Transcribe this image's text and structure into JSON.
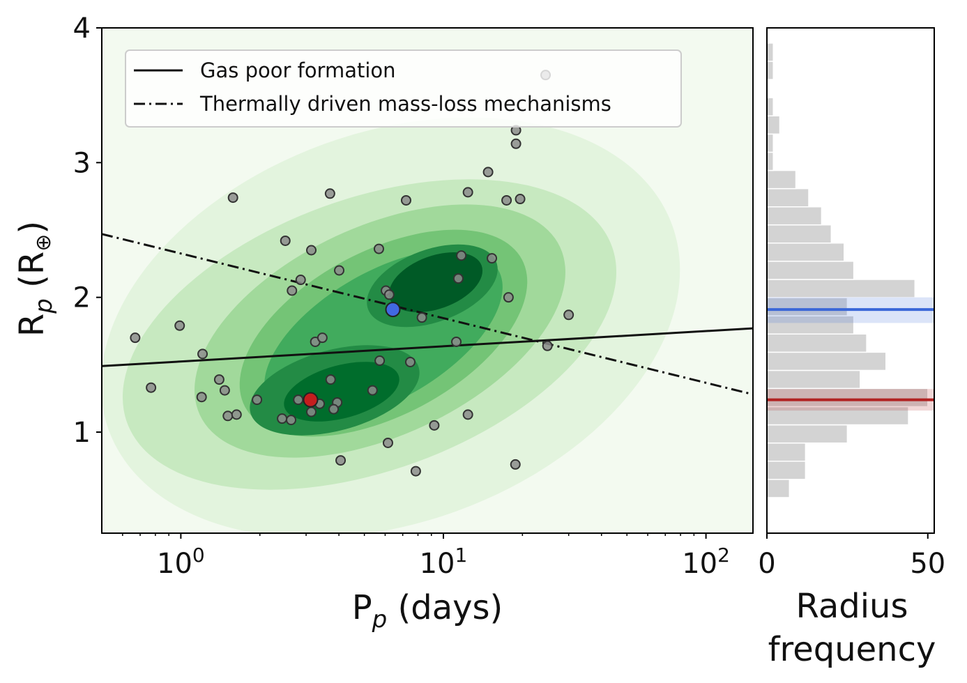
{
  "chart_data": [
    {
      "type": "scatter",
      "xscale": "log",
      "xlabel": [
        "P",
        "p",
        " (days)"
      ],
      "ylabel": [
        "R",
        "p",
        " (R",
        "⊕",
        ")"
      ],
      "xlim": [
        0.5,
        151
      ],
      "ylim": [
        0.25,
        4
      ],
      "xticks": [
        {
          "value": 1,
          "label": "10",
          "exponent": "0"
        },
        {
          "value": 10,
          "label": "10",
          "exponent": "1"
        },
        {
          "value": 100,
          "label": "10",
          "exponent": "2"
        }
      ],
      "xminorticks": [
        0.6,
        0.7,
        0.8,
        0.9,
        2,
        3,
        4,
        5,
        6,
        7,
        8,
        9,
        20,
        30,
        40,
        50,
        60,
        70,
        80,
        90
      ],
      "yticks": [
        1,
        2,
        3,
        4
      ],
      "legend": "upper left",
      "points": {
        "color": "#8c8c8c",
        "x": [
          0.67,
          0.99,
          0.77,
          1.21,
          1.2,
          1.4,
          1.47,
          1.58,
          1.51,
          1.63,
          1.95,
          2.5,
          2.65,
          2.86,
          3.14,
          2.43,
          2.63,
          2.8,
          3.14,
          3.38,
          3.25,
          3.46,
          3.7,
          4.01,
          3.72,
          3.94,
          3.82,
          4.06,
          5.37,
          5.68,
          5.72,
          6.04,
          6.15,
          6.22,
          7.21,
          7.48,
          7.85,
          8.28,
          9.23,
          11.2,
          11.4,
          11.7,
          12.4,
          12.4,
          14.8,
          15.3,
          17.4,
          17.7,
          18.8,
          18.9,
          18.9,
          19.6,
          24.5,
          24.9,
          30.0
        ],
        "y": [
          1.7,
          1.79,
          1.33,
          1.58,
          1.26,
          1.39,
          1.31,
          2.74,
          1.12,
          1.13,
          1.24,
          2.42,
          2.05,
          2.13,
          2.35,
          1.1,
          1.09,
          1.24,
          1.15,
          1.21,
          1.67,
          1.7,
          2.77,
          2.2,
          1.39,
          1.22,
          1.17,
          0.79,
          1.31,
          2.36,
          1.53,
          2.05,
          0.92,
          2.02,
          2.72,
          1.52,
          0.71,
          1.85,
          1.05,
          1.67,
          2.14,
          2.31,
          2.78,
          1.13,
          2.93,
          2.29,
          2.72,
          2.0,
          0.76,
          3.24,
          3.14,
          2.73,
          3.65,
          1.64,
          1.87
        ]
      },
      "highlights": [
        {
          "x": 6.42,
          "y": 1.91,
          "color": "#4169e1"
        },
        {
          "x": 3.12,
          "y": 1.24,
          "color": "#c41e1e"
        }
      ],
      "series": [
        {
          "name": "Gas poor formation",
          "style": "solid",
          "color": "#111111",
          "x": [
            0.5,
            151
          ],
          "values": [
            1.49,
            1.77
          ]
        },
        {
          "name": "Thermally driven mass-loss mechanisms",
          "style": "dashdot",
          "color": "#111111",
          "x": [
            0.5,
            151
          ],
          "values": [
            2.47,
            1.28
          ]
        }
      ]
    },
    {
      "type": "histogram",
      "orientation": "horizontal",
      "xlabel": [
        "Radius",
        "frequency"
      ],
      "xlim": [
        0,
        52
      ],
      "xticks": [
        0,
        50
      ],
      "ylim": [
        0.25,
        4
      ],
      "color": "#d3d3d3",
      "bins": [
        0.514,
        0.649,
        0.784,
        0.919,
        1.054,
        1.189,
        1.324,
        1.458,
        1.593,
        1.728,
        1.863,
        1.998,
        2.133,
        2.268,
        2.403,
        2.538,
        2.672,
        2.807,
        2.942,
        3.077,
        3.212,
        3.347,
        3.482,
        3.617,
        3.752,
        3.887
      ],
      "counts": [
        7,
        12,
        12,
        25,
        44,
        50,
        29,
        37,
        31,
        27,
        25,
        46,
        27,
        24,
        20,
        17,
        13,
        9,
        2,
        2,
        4,
        2,
        0,
        2,
        2
      ],
      "hlines": [
        {
          "y": 1.91,
          "low": 1.81,
          "high": 2.0,
          "color": "#3a67d8"
        },
        {
          "y": 1.24,
          "low": 1.16,
          "high": 1.32,
          "color": "#b22222"
        }
      ]
    }
  ]
}
